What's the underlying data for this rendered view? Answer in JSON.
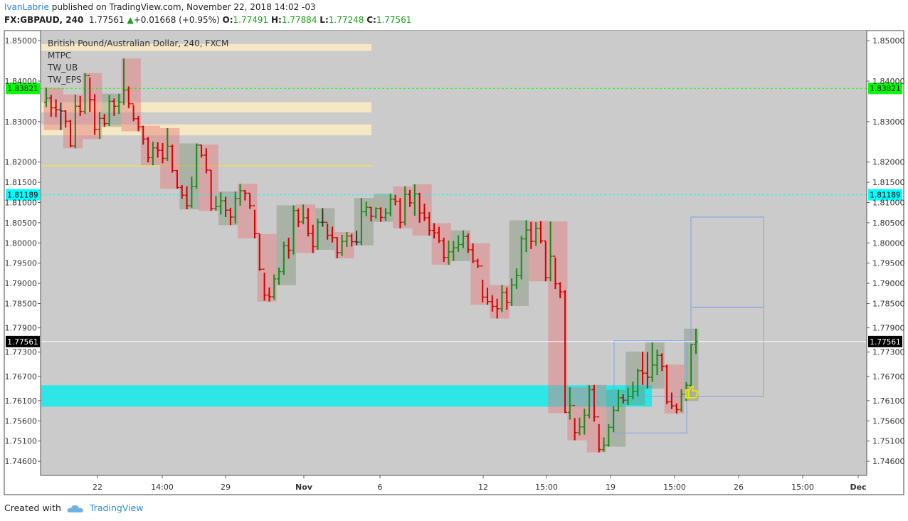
{
  "header": {
    "author": "IvanLabrie",
    "published_text": "published on TradingView.com, November 22, 2018 14:02 -03",
    "symbol": "FX:GBPAUD, 240",
    "last": "1.77561",
    "change": "+0.01668 (+0.95%)",
    "o_label": "O:",
    "o_value": "1.77491",
    "h_label": "H:",
    "h_value": "1.77884",
    "l_label": "L:",
    "l_value": "1.77248",
    "c_label": "C:",
    "c_value": "1.77561"
  },
  "legend": {
    "title": "British Pound/Australian Dollar, 240, FXCM",
    "items": [
      "MTPC",
      "TW_UB",
      "TW_EPS"
    ]
  },
  "footer": {
    "created_with": "Created with",
    "brand": "TradingView"
  },
  "colors": {
    "up": "#1a8a1a",
    "down": "#d40000",
    "neutral": "#333333",
    "zone": "#2ee6e6",
    "green_line": "#00cc00",
    "cyan_line": "#00d8e8"
  },
  "chart_data": {
    "type": "ohlc",
    "title": "British Pound/Australian Dollar, 240, FXCM",
    "ylim": [
      1.7425,
      1.8525
    ],
    "y_ticks": [
      "1.85000",
      "1.84000",
      "1.83000",
      "1.82000",
      "1.81500",
      "1.81000",
      "1.80500",
      "1.80000",
      "1.79500",
      "1.79000",
      "1.78500",
      "1.77900",
      "1.77300",
      "1.76700",
      "1.76100",
      "1.75600",
      "1.75100",
      "1.74600"
    ],
    "x_ticks": [
      "22",
      "14:00",
      "29",
      "Nov",
      "6",
      "12",
      "15:00",
      "19",
      "15:00",
      "26",
      "15:00",
      "Dec"
    ],
    "price_labels": [
      {
        "value": 1.83821,
        "text": "1.83821",
        "color": "#00ff00",
        "style": "dashed"
      },
      {
        "value": 1.81189,
        "text": "1.81189",
        "color": "#00ffff",
        "style": "dashed"
      },
      {
        "value": 1.77561,
        "text": "1.77561",
        "color": "#000000",
        "style": "solid"
      }
    ],
    "zones": [
      {
        "from": 1.7595,
        "to": 1.7648,
        "color": "#2ee6e6"
      },
      {
        "from": 1.8475,
        "to": 1.8492,
        "color": "#f5e8c4"
      },
      {
        "from": 1.8323,
        "to": 1.8348,
        "color": "#f5e8c4"
      },
      {
        "from": 1.8266,
        "to": 1.8293,
        "color": "#f5e8c4"
      },
      {
        "from": 1.819,
        "to": 1.8192,
        "color": "#e8e060"
      }
    ],
    "bars": [
      [
        1.8347,
        1.8384,
        1.8336,
        1.8358
      ],
      [
        1.8358,
        1.8366,
        1.8312,
        1.8334
      ],
      [
        1.8334,
        1.8355,
        1.8311,
        1.8329
      ],
      [
        1.8329,
        1.8347,
        1.8279,
        1.8326
      ],
      [
        1.8326,
        1.8328,
        1.8285,
        1.8301
      ],
      [
        1.8301,
        1.8304,
        1.8237,
        1.824
      ],
      [
        1.824,
        1.8367,
        1.8234,
        1.8338
      ],
      [
        1.8338,
        1.8363,
        1.8314,
        1.8325
      ],
      [
        1.8325,
        1.842,
        1.8319,
        1.8414
      ],
      [
        1.8414,
        1.8409,
        1.8324,
        1.8354
      ],
      [
        1.8354,
        1.8368,
        1.8267,
        1.8281
      ],
      [
        1.8281,
        1.8324,
        1.8257,
        1.8308
      ],
      [
        1.8308,
        1.8319,
        1.8287,
        1.8295
      ],
      [
        1.8295,
        1.8366,
        1.8289,
        1.835
      ],
      [
        1.835,
        1.8357,
        1.8314,
        1.8338
      ],
      [
        1.8338,
        1.8369,
        1.8319,
        1.8348
      ],
      [
        1.8348,
        1.8456,
        1.8341,
        1.8378
      ],
      [
        1.8378,
        1.8387,
        1.8333,
        1.8344
      ],
      [
        1.8344,
        1.8341,
        1.8301,
        1.8307
      ],
      [
        1.8307,
        1.8314,
        1.8276,
        1.8287
      ],
      [
        1.8287,
        1.829,
        1.8243,
        1.8257
      ],
      [
        1.8257,
        1.8262,
        1.8199,
        1.8211
      ],
      [
        1.8211,
        1.825,
        1.8192,
        1.8235
      ],
      [
        1.8235,
        1.8249,
        1.8211,
        1.8229
      ],
      [
        1.8229,
        1.8247,
        1.8197,
        1.8209
      ],
      [
        1.8209,
        1.8284,
        1.8203,
        1.8239
      ],
      [
        1.8239,
        1.8243,
        1.8174,
        1.8179
      ],
      [
        1.8179,
        1.818,
        1.8134,
        1.8137
      ],
      [
        1.8137,
        1.8143,
        1.8109,
        1.8118
      ],
      [
        1.8118,
        1.814,
        1.8083,
        1.8092
      ],
      [
        1.8092,
        1.8164,
        1.8087,
        1.814
      ],
      [
        1.814,
        1.8246,
        1.8134,
        1.8242
      ],
      [
        1.8242,
        1.8243,
        1.8211,
        1.8217
      ],
      [
        1.8217,
        1.8234,
        1.8172,
        1.818
      ],
      [
        1.818,
        1.818,
        1.8079,
        1.8085
      ],
      [
        1.8085,
        1.8116,
        1.808,
        1.809
      ],
      [
        1.809,
        1.8125,
        1.807,
        1.8104
      ],
      [
        1.8104,
        1.8114,
        1.8064,
        1.8081
      ],
      [
        1.8081,
        1.8087,
        1.8044,
        1.8064
      ],
      [
        1.8064,
        1.8127,
        1.8048,
        1.811
      ],
      [
        1.811,
        1.8146,
        1.8092,
        1.8129
      ],
      [
        1.8129,
        1.8131,
        1.8105,
        1.8123
      ],
      [
        1.8123,
        1.8122,
        1.8084,
        1.8092
      ],
      [
        1.8092,
        1.8082,
        1.8011,
        1.8023
      ],
      [
        1.8023,
        1.8022,
        1.7931,
        1.7935
      ],
      [
        1.7935,
        1.7926,
        1.7857,
        1.7871
      ],
      [
        1.7871,
        1.789,
        1.7855,
        1.7867
      ],
      [
        1.7867,
        1.7922,
        1.786,
        1.7911
      ],
      [
        1.7911,
        1.7939,
        1.7896,
        1.7929
      ],
      [
        1.7929,
        1.8003,
        1.7921,
        1.7993
      ],
      [
        1.7993,
        1.8013,
        1.7961,
        1.7982
      ],
      [
        1.7982,
        1.8093,
        1.7971,
        1.808
      ],
      [
        1.808,
        1.8085,
        1.8039,
        1.8052
      ],
      [
        1.8052,
        1.8095,
        1.8046,
        1.8062
      ],
      [
        1.8062,
        1.8086,
        1.8016,
        1.8023
      ],
      [
        1.8023,
        1.8045,
        1.7975,
        1.7991
      ],
      [
        1.7991,
        1.806,
        1.7983,
        1.8051
      ],
      [
        1.8051,
        1.8086,
        1.804,
        1.8051
      ],
      [
        1.8051,
        1.8048,
        1.8008,
        1.8019
      ],
      [
        1.8019,
        1.804,
        1.8001,
        1.8013
      ],
      [
        1.8013,
        1.8014,
        1.7962,
        1.7976
      ],
      [
        1.7976,
        1.802,
        1.7968,
        1.8004
      ],
      [
        1.8004,
        1.8027,
        1.799,
        1.8017
      ],
      [
        1.8017,
        1.8022,
        1.7991,
        1.8003
      ],
      [
        1.8003,
        1.803,
        1.7994,
        1.8002
      ],
      [
        1.8002,
        1.8111,
        1.7994,
        1.8077
      ],
      [
        1.8077,
        1.8102,
        1.8066,
        1.8088
      ],
      [
        1.8088,
        1.8089,
        1.8053,
        1.8066
      ],
      [
        1.8066,
        1.8088,
        1.806,
        1.8085
      ],
      [
        1.8085,
        1.8088,
        1.8052,
        1.8063
      ],
      [
        1.8063,
        1.8086,
        1.8055,
        1.8074
      ],
      [
        1.8074,
        1.8122,
        1.8066,
        1.8108
      ],
      [
        1.8108,
        1.8119,
        1.8093,
        1.8103
      ],
      [
        1.8103,
        1.8111,
        1.8036,
        1.8051
      ],
      [
        1.8051,
        1.814,
        1.8043,
        1.812
      ],
      [
        1.812,
        1.8131,
        1.8089,
        1.8099
      ],
      [
        1.8099,
        1.8145,
        1.8067,
        1.8121
      ],
      [
        1.8121,
        1.8124,
        1.805,
        1.8074
      ],
      [
        1.8074,
        1.8097,
        1.8054,
        1.8062
      ],
      [
        1.8062,
        1.8076,
        1.8018,
        1.8031
      ],
      [
        1.8031,
        1.8049,
        1.8011,
        1.8025
      ],
      [
        1.8025,
        1.804,
        1.8,
        1.8005
      ],
      [
        1.8005,
        1.8013,
        1.7953,
        1.7964
      ],
      [
        1.7964,
        1.8006,
        1.7946,
        1.7978
      ],
      [
        1.7978,
        1.8005,
        1.7955,
        1.7988
      ],
      [
        1.7988,
        1.8019,
        1.7978,
        1.7996
      ],
      [
        1.7996,
        1.8031,
        1.7987,
        1.8016
      ],
      [
        1.8016,
        1.8023,
        1.7975,
        1.7983
      ],
      [
        1.7983,
        1.7999,
        1.795,
        1.7955
      ],
      [
        1.7955,
        1.7961,
        1.7938,
        1.7943
      ],
      [
        1.7943,
        1.7909,
        1.7853,
        1.7866
      ],
      [
        1.7866,
        1.7889,
        1.7847,
        1.7855
      ],
      [
        1.7855,
        1.7871,
        1.783,
        1.7843
      ],
      [
        1.7843,
        1.7862,
        1.7813,
        1.7837
      ],
      [
        1.7837,
        1.7896,
        1.7829,
        1.7878
      ],
      [
        1.7878,
        1.789,
        1.7835,
        1.7853
      ],
      [
        1.7853,
        1.7912,
        1.7844,
        1.7896
      ],
      [
        1.7896,
        1.7937,
        1.7886,
        1.7919
      ],
      [
        1.7919,
        1.8017,
        1.791,
        1.801
      ],
      [
        1.801,
        1.8056,
        1.7977,
        1.8032
      ],
      [
        1.8032,
        1.8052,
        1.7985,
        1.8004
      ],
      [
        1.8004,
        1.8051,
        1.7993,
        1.8036
      ],
      [
        1.8036,
        1.8054,
        1.7999,
        1.8005
      ],
      [
        1.8005,
        1.8004,
        1.7905,
        1.7914
      ],
      [
        1.7914,
        1.8053,
        1.7905,
        1.7967
      ],
      [
        1.7967,
        1.7964,
        1.7886,
        1.7899
      ],
      [
        1.7899,
        1.7903,
        1.7863,
        1.7879
      ],
      [
        1.7879,
        1.7883,
        1.7579,
        1.7581
      ],
      [
        1.7581,
        1.7643,
        1.7563,
        1.7598
      ],
      [
        1.7598,
        1.7567,
        1.7512,
        1.7531
      ],
      [
        1.7531,
        1.7568,
        1.7524,
        1.7545
      ],
      [
        1.7545,
        1.759,
        1.7526,
        1.7574
      ],
      [
        1.7574,
        1.7648,
        1.7566,
        1.7637
      ],
      [
        1.7637,
        1.7649,
        1.7558,
        1.757
      ],
      [
        1.757,
        1.7552,
        1.7482,
        1.7489
      ],
      [
        1.7489,
        1.7519,
        1.7484,
        1.75
      ],
      [
        1.75,
        1.7552,
        1.7496,
        1.7544
      ],
      [
        1.7544,
        1.7596,
        1.7532,
        1.7586
      ],
      [
        1.7586,
        1.7637,
        1.7583,
        1.7617
      ],
      [
        1.7617,
        1.7626,
        1.7603,
        1.7611
      ],
      [
        1.7611,
        1.7642,
        1.7599,
        1.762
      ],
      [
        1.762,
        1.7657,
        1.7613,
        1.7633
      ],
      [
        1.7633,
        1.7689,
        1.762,
        1.7684
      ],
      [
        1.7684,
        1.7731,
        1.7649,
        1.7678
      ],
      [
        1.7678,
        1.773,
        1.764,
        1.7668
      ],
      [
        1.7668,
        1.7754,
        1.7656,
        1.7698
      ],
      [
        1.7698,
        1.7736,
        1.7673,
        1.7722
      ],
      [
        1.7722,
        1.7727,
        1.7683,
        1.7695
      ],
      [
        1.7695,
        1.7699,
        1.7601,
        1.7607
      ],
      [
        1.7607,
        1.763,
        1.7589,
        1.7597
      ],
      [
        1.7597,
        1.7603,
        1.7578,
        1.7588
      ],
      [
        1.7588,
        1.7638,
        1.7582,
        1.7626
      ],
      [
        1.7626,
        1.7656,
        1.7609,
        1.7648
      ],
      [
        1.7648,
        1.775,
        1.764,
        1.7749
      ],
      [
        1.7749,
        1.7788,
        1.7725,
        1.7756
      ]
    ]
  }
}
